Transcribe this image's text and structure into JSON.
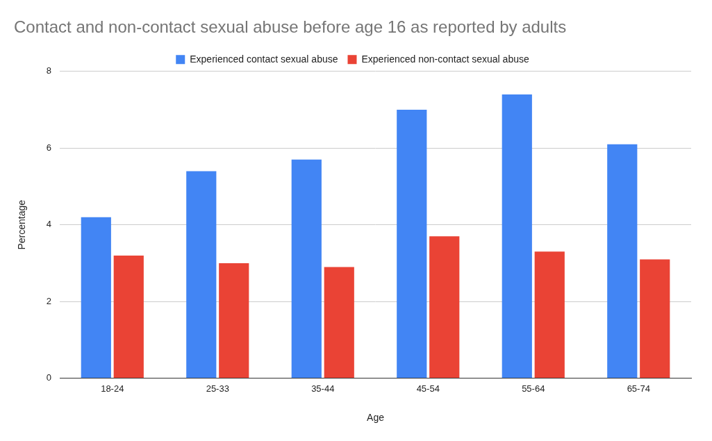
{
  "chart_data": {
    "type": "bar",
    "title": "Contact and non-contact sexual abuse before age 16 as reported by adults",
    "x_label": "Age",
    "y_label": "Percentage",
    "categories": [
      "18-24",
      "25-33",
      "35-44",
      "45-54",
      "55-64",
      "65-74"
    ],
    "series": [
      {
        "name": "Experienced contact sexual abuse",
        "color": "#4285f4",
        "values": [
          4.2,
          5.4,
          5.7,
          7.0,
          7.4,
          6.1
        ]
      },
      {
        "name": "Experienced non-contact sexual abuse",
        "color": "#ea4335",
        "values": [
          3.2,
          3.0,
          2.9,
          3.7,
          3.3,
          3.1
        ]
      }
    ],
    "ylim": [
      0,
      8
    ],
    "yticks": [
      0,
      2,
      4,
      6,
      8
    ],
    "grid": true,
    "legend": "top"
  }
}
